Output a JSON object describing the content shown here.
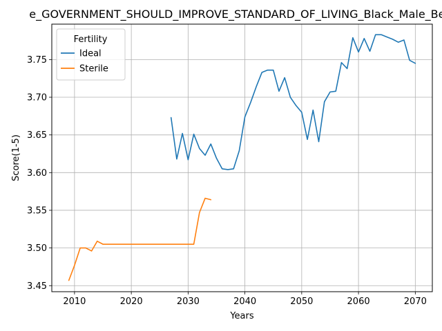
{
  "chart_data": {
    "type": "line",
    "title": "e_GOVERNMENT_SHOULD_IMPROVE_STANDARD_OF_LIVING_Black_Male_Belo",
    "xlabel": "Years",
    "ylabel": "Score(1-5)",
    "xlim": [
      2006,
      2073
    ],
    "ylim": [
      3.442,
      3.797
    ],
    "xticks": [
      2010,
      2020,
      2030,
      2040,
      2050,
      2060,
      2070
    ],
    "yticks": [
      3.45,
      3.5,
      3.55,
      3.6,
      3.65,
      3.7,
      3.75
    ],
    "grid": true,
    "legend": {
      "title": "Fertility",
      "position": "top-left",
      "entries": [
        "Ideal",
        "Sterile"
      ]
    },
    "series": [
      {
        "name": "Ideal",
        "color": "#1f77b4",
        "x": [
          2027,
          2028,
          2029,
          2030,
          2031,
          2032,
          2033,
          2034,
          2035,
          2036,
          2037,
          2038,
          2039,
          2040,
          2041,
          2042,
          2043,
          2044,
          2045,
          2046,
          2047,
          2048,
          2049,
          2050,
          2051,
          2052,
          2053,
          2054,
          2055,
          2056,
          2057,
          2058,
          2059,
          2060,
          2061,
          2062,
          2063,
          2064,
          2065,
          2066,
          2067,
          2068,
          2069,
          2070
        ],
        "y": [
          3.673,
          3.618,
          3.652,
          3.617,
          3.651,
          3.632,
          3.623,
          3.638,
          3.619,
          3.605,
          3.604,
          3.605,
          3.629,
          3.674,
          3.693,
          3.714,
          3.733,
          3.736,
          3.736,
          3.708,
          3.726,
          3.7,
          3.689,
          3.68,
          3.644,
          3.683,
          3.641,
          3.694,
          3.707,
          3.708,
          3.746,
          3.738,
          3.779,
          3.76,
          3.778,
          3.761,
          3.783,
          3.783,
          3.78,
          3.777,
          3.773,
          3.776,
          3.749,
          3.745
        ]
      },
      {
        "name": "Sterile",
        "color": "#ff7f0e",
        "x": [
          2009,
          2010,
          2011,
          2012,
          2013,
          2014,
          2015,
          2016,
          2017,
          2018,
          2019,
          2020,
          2021,
          2022,
          2023,
          2024,
          2025,
          2026,
          2027,
          2028,
          2029,
          2030,
          2031,
          2032,
          2033,
          2034
        ],
        "y": [
          3.457,
          3.477,
          3.5,
          3.5,
          3.496,
          3.509,
          3.505,
          3.505,
          3.505,
          3.505,
          3.505,
          3.505,
          3.505,
          3.505,
          3.505,
          3.505,
          3.505,
          3.505,
          3.505,
          3.505,
          3.505,
          3.505,
          3.505,
          3.547,
          3.566,
          3.564
        ]
      }
    ]
  }
}
